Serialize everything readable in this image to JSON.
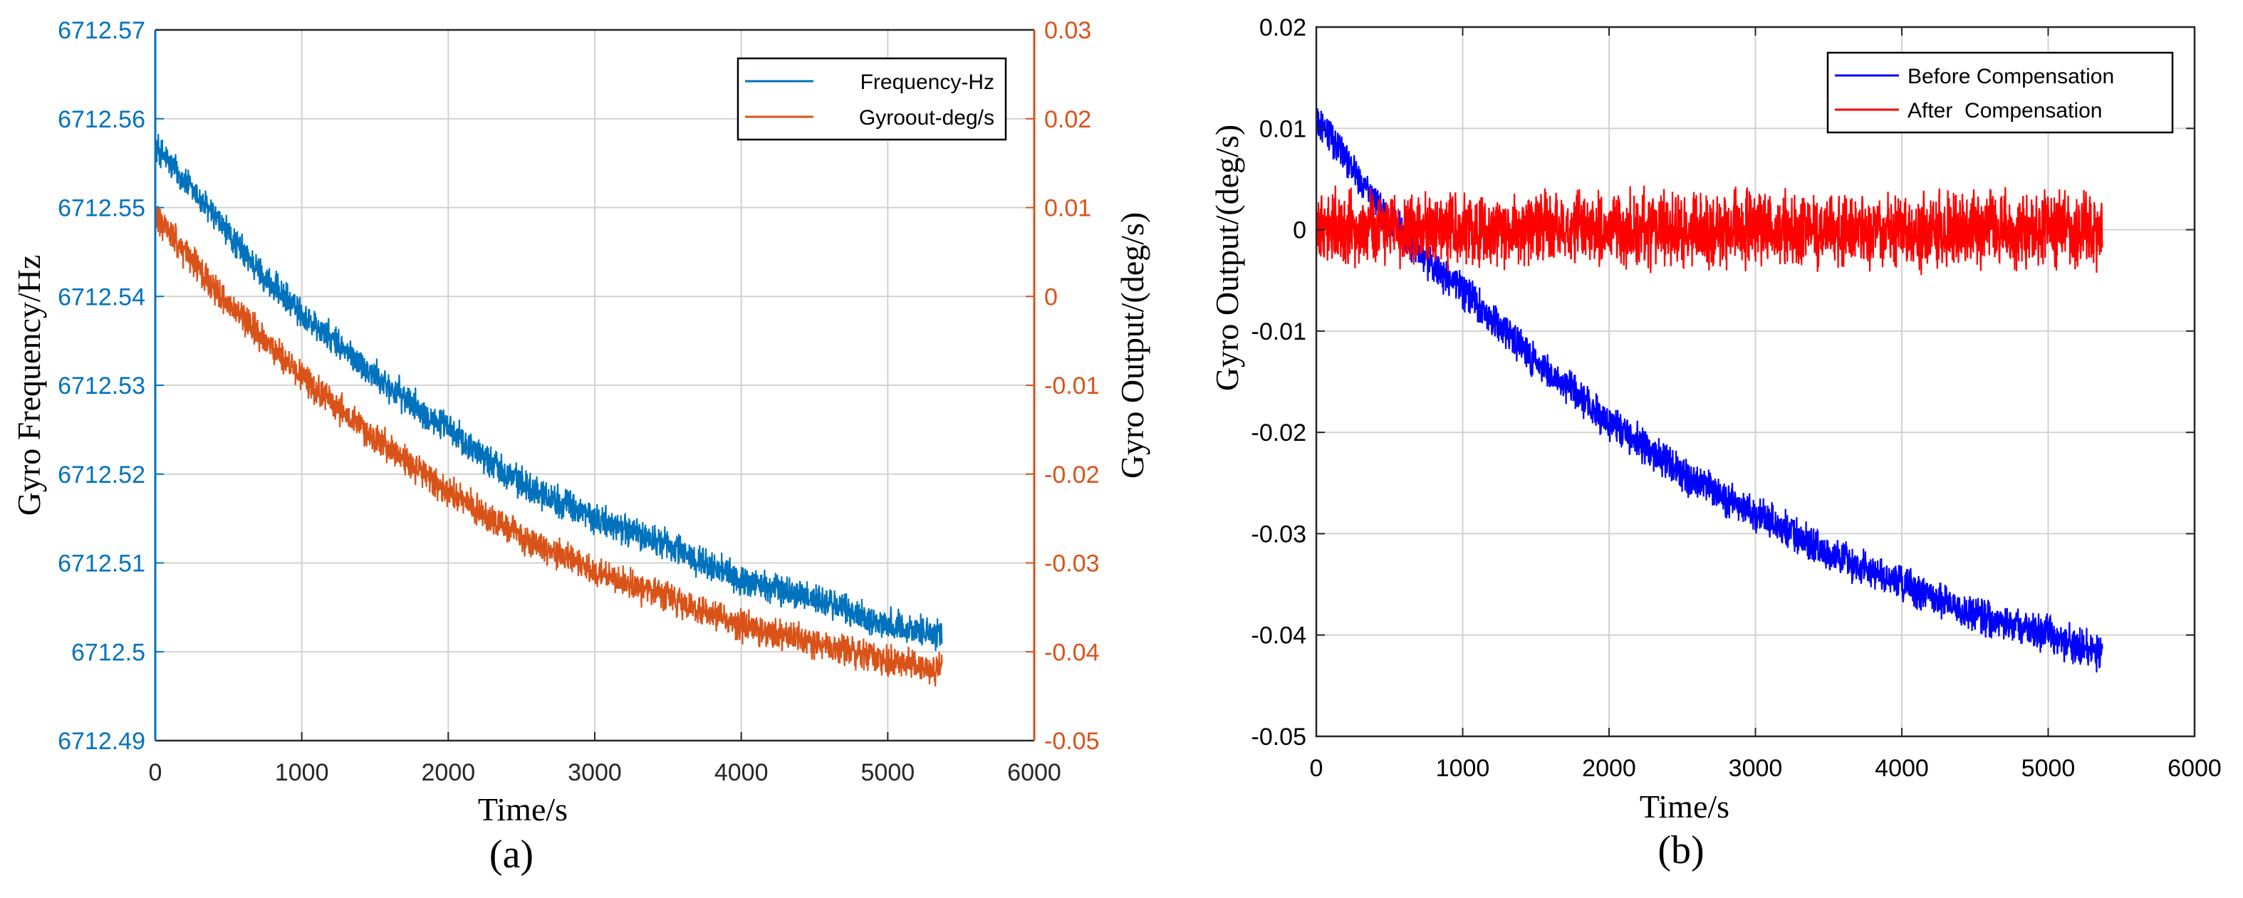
{
  "chart_data": [
    {
      "panel_label": "(a)",
      "type": "line",
      "xlabel": "Time/s",
      "xlim": [
        0,
        6000
      ],
      "xticks": [
        "0",
        "1000",
        "2000",
        "3000",
        "4000",
        "5000",
        "6000"
      ],
      "ylabel_left": "Gyro Frequency/Hz",
      "ylim_left": [
        6712.49,
        6712.57
      ],
      "yticks_left": [
        "6712.57",
        "6712.56",
        "6712.55",
        "6712.54",
        "6712.53",
        "6712.52",
        "6712.51",
        "6712.5",
        "6712.49"
      ],
      "ylabel_right": "Gyro Output/(deg/s)",
      "ylim_right": [
        -0.05,
        0.03
      ],
      "yticks_right": [
        "0.03",
        "0.02",
        "0.01",
        "0",
        "-0.01",
        "-0.02",
        "-0.03",
        "-0.04",
        "-0.05"
      ],
      "grid": true,
      "legend_position": "top-right",
      "series": [
        {
          "name": "Frequency-Hz",
          "axis": "left",
          "color": "#0072BD",
          "x": [
            0,
            250,
            500,
            750,
            1000,
            1500,
            2000,
            2500,
            3000,
            3500,
            4000,
            4500,
            5000,
            5370
          ],
          "y": [
            6712.557,
            6712.552,
            6712.547,
            6712.542,
            6712.538,
            6712.531,
            6712.525,
            6712.519,
            6712.515,
            6712.512,
            6712.508,
            6712.506,
            6712.503,
            6712.502
          ],
          "noise_amplitude": 0.0022
        },
        {
          "name": "Gyroout-deg/s",
          "axis": "right",
          "color": "#D95319",
          "x": [
            0,
            250,
            500,
            750,
            1000,
            1500,
            2000,
            2500,
            3000,
            3500,
            4000,
            4500,
            5000,
            5370
          ],
          "y": [
            0.009,
            0.004,
            -0.001,
            -0.005,
            -0.009,
            -0.016,
            -0.022,
            -0.027,
            -0.031,
            -0.034,
            -0.037,
            -0.039,
            -0.041,
            -0.042
          ],
          "noise_amplitude": 0.0022
        }
      ]
    },
    {
      "panel_label": "(b)",
      "type": "line",
      "xlabel": "Time/s",
      "xlim": [
        0,
        6000
      ],
      "xticks": [
        "0",
        "1000",
        "2000",
        "3000",
        "4000",
        "5000",
        "6000"
      ],
      "ylabel": "Gyro Output/(deg/s)",
      "ylim": [
        -0.05,
        0.02
      ],
      "yticks": [
        "0.02",
        "0.01",
        "0",
        "-0.01",
        "-0.02",
        "-0.03",
        "-0.04",
        "-0.05"
      ],
      "grid": true,
      "legend_position": "top-right",
      "series": [
        {
          "name": "Before Compensation",
          "color": "#0000FF",
          "x": [
            0,
            100,
            250,
            500,
            750,
            1000,
            1500,
            2000,
            2500,
            3000,
            3500,
            4000,
            4500,
            5000,
            5370
          ],
          "y": [
            0.011,
            0.009,
            0.006,
            0.001,
            -0.003,
            -0.006,
            -0.013,
            -0.019,
            -0.024,
            -0.028,
            -0.032,
            -0.035,
            -0.038,
            -0.04,
            -0.042
          ],
          "noise_amplitude": 0.0022
        },
        {
          "name": "After  Compensation",
          "color": "#FF0000",
          "x": [
            0,
            5370
          ],
          "y": [
            0.0,
            0.0
          ],
          "noise_amplitude": 0.0045
        }
      ]
    }
  ]
}
